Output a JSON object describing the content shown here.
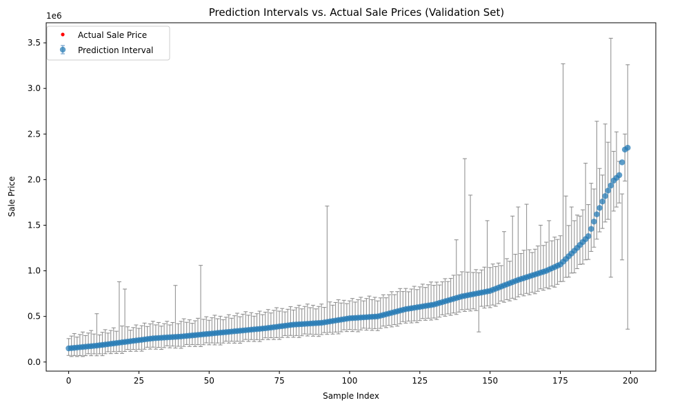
{
  "chart_data": {
    "type": "scatter",
    "title": "Prediction Intervals vs. Actual Sale Prices (Validation Set)",
    "xlabel": "Sample Index",
    "ylabel": "Sale Price",
    "y_offset_label": "1e6",
    "xlim": [
      -8,
      209
    ],
    "ylim": [
      -0.1,
      3.72
    ],
    "xticks": [
      0,
      25,
      50,
      75,
      100,
      125,
      150,
      175,
      200
    ],
    "yticks": [
      0.0,
      0.5,
      1.0,
      1.5,
      2.0,
      2.5,
      3.0,
      3.5
    ],
    "ytick_labels": [
      "0.0",
      "0.5",
      "1.0",
      "1.5",
      "2.0",
      "2.5",
      "3.0",
      "3.5"
    ],
    "legend": {
      "placement": "top-left",
      "entries": [
        {
          "label": "Actual Sale Price",
          "color": "#ff0000",
          "marker": "point"
        },
        {
          "label": "Prediction Interval",
          "color": "#1f77b4",
          "marker": "errorbar"
        }
      ]
    },
    "colors": {
      "point": "#1f77b4",
      "error": "#808080",
      "actual": "#ff0000"
    },
    "anchors": {
      "x": [
        0,
        10,
        20,
        30,
        40,
        50,
        60,
        70,
        80,
        90,
        100,
        110,
        120,
        130,
        140,
        150,
        160,
        170,
        175,
        180,
        185,
        188,
        190,
        192,
        194,
        196,
        198,
        199
      ],
      "y": [
        0.15,
        0.18,
        0.22,
        0.26,
        0.28,
        0.31,
        0.34,
        0.37,
        0.41,
        0.43,
        0.48,
        0.5,
        0.58,
        0.63,
        0.72,
        0.78,
        0.9,
        1.0,
        1.07,
        1.22,
        1.38,
        1.62,
        1.76,
        1.88,
        1.99,
        2.05,
        2.33,
        2.35
      ]
    },
    "spikes": [
      {
        "x": 10,
        "upper": 0.53
      },
      {
        "x": 18,
        "upper": 0.88
      },
      {
        "x": 20,
        "upper": 0.8
      },
      {
        "x": 38,
        "upper": 0.84
      },
      {
        "x": 47,
        "upper": 1.06
      },
      {
        "x": 92,
        "upper": 1.71
      },
      {
        "x": 138,
        "upper": 1.34
      },
      {
        "x": 141,
        "upper": 2.23
      },
      {
        "x": 143,
        "upper": 1.83
      },
      {
        "x": 146,
        "lower": 0.33
      },
      {
        "x": 149,
        "upper": 1.55
      },
      {
        "x": 155,
        "upper": 1.43
      },
      {
        "x": 158,
        "upper": 1.6
      },
      {
        "x": 160,
        "upper": 1.7
      },
      {
        "x": 163,
        "upper": 1.73
      },
      {
        "x": 168,
        "upper": 1.5
      },
      {
        "x": 171,
        "upper": 1.55
      },
      {
        "x": 176,
        "upper": 3.27
      },
      {
        "x": 177,
        "upper": 1.82
      },
      {
        "x": 179,
        "upper": 1.7
      },
      {
        "x": 182,
        "upper": 1.6
      },
      {
        "x": 184,
        "upper": 2.18
      },
      {
        "x": 186,
        "upper": 1.96
      },
      {
        "x": 188,
        "upper": 2.64
      },
      {
        "x": 190,
        "upper": 2.05
      },
      {
        "x": 191,
        "upper": 2.61
      },
      {
        "x": 192,
        "upper": 2.41
      },
      {
        "x": 193,
        "upper": 3.55,
        "lower": 0.93
      },
      {
        "x": 194,
        "upper": 2.31
      },
      {
        "x": 196,
        "upper": 2.2
      },
      {
        "x": 197,
        "upper": 1.12
      },
      {
        "x": 198,
        "upper": 2.5
      },
      {
        "x": 199,
        "upper": 3.26,
        "lower": 0.36
      }
    ]
  }
}
